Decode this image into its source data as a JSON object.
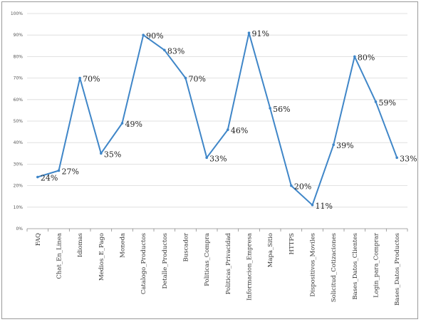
{
  "chart_data": {
    "type": "line",
    "categories": [
      "FAQ",
      "Chat_En_Linea",
      "Idiomas",
      "Medios_E_Pago",
      "Moneda",
      "Catalogo_Productos",
      "Detalle_Productos",
      "Buscador",
      "Politicas_Compra",
      "Politicas_Privacidad",
      "Informacion_Empresa",
      "Mapa_Sitio",
      "HTTPS",
      "Dispositivos_Moviles",
      "Solicitud_Cotizaciones",
      "Bases_Datos_Clientes",
      "Login_para_Comprar",
      "Bases_Datos_Productos"
    ],
    "series": [
      {
        "values": [
          24,
          27,
          70,
          35,
          49,
          90,
          83,
          70,
          33,
          46,
          91,
          56,
          20,
          11,
          39,
          80,
          59,
          33
        ],
        "labels": [
          "24%",
          "27%",
          "70%",
          "35%",
          "49%",
          "90%",
          "83%",
          "70%",
          "33%",
          "46%",
          "91%",
          "56%",
          "20%",
          "11%",
          "39%",
          "80%",
          "59%",
          "33%"
        ]
      }
    ],
    "yticks": [
      "0%",
      "10%",
      "20%",
      "30%",
      "40%",
      "50%",
      "60%",
      "70%",
      "80%",
      "90%",
      "100%"
    ],
    "ylim": [
      0,
      100
    ],
    "grid": true,
    "legend": "none",
    "colors": {
      "line": "#3f86c8"
    }
  }
}
